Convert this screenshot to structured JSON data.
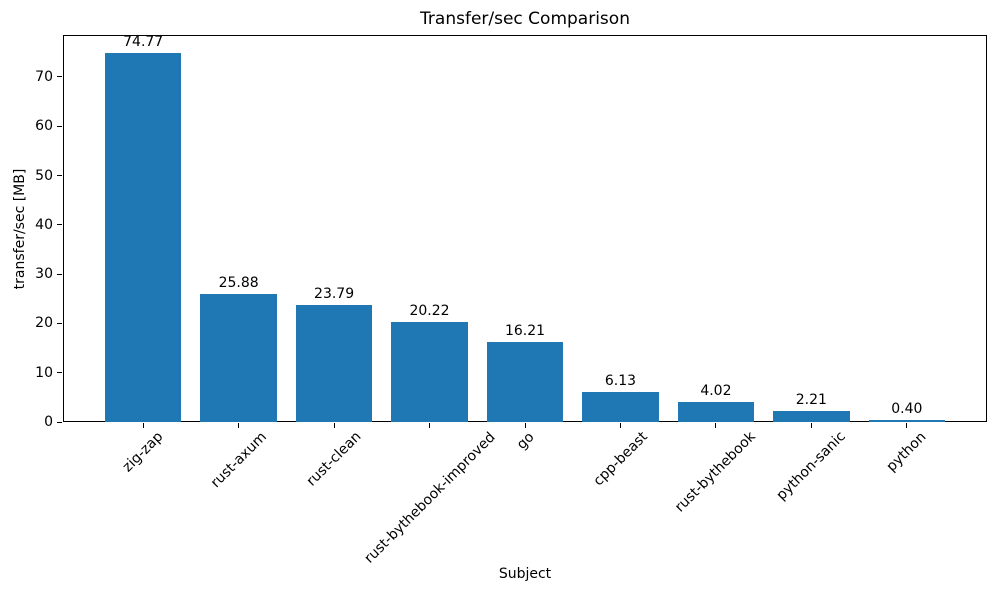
{
  "chart_data": {
    "type": "bar",
    "title": "Transfer/sec Comparison",
    "xlabel": "Subject",
    "ylabel": "transfer/sec [MB]",
    "categories": [
      "zig-zap",
      "rust-axum",
      "rust-clean",
      "rust-bythebook-improved",
      "go",
      "cpp-beast",
      "rust-bythebook",
      "python-sanic",
      "python"
    ],
    "values": [
      74.77,
      25.88,
      23.79,
      20.22,
      16.21,
      6.13,
      4.02,
      2.21,
      0.4
    ],
    "value_labels": [
      "74.77",
      "25.88",
      "23.79",
      "20.22",
      "16.21",
      "6.13",
      "4.02",
      "2.21",
      "0.40"
    ],
    "yticks": [
      0,
      10,
      20,
      30,
      40,
      50,
      60,
      70
    ],
    "ylim": [
      0,
      78.5
    ],
    "bar_color": "#1f77b4",
    "axis_color": "#000000",
    "grid": false,
    "legend": "none",
    "x_tick_rotation_deg": 45
  }
}
